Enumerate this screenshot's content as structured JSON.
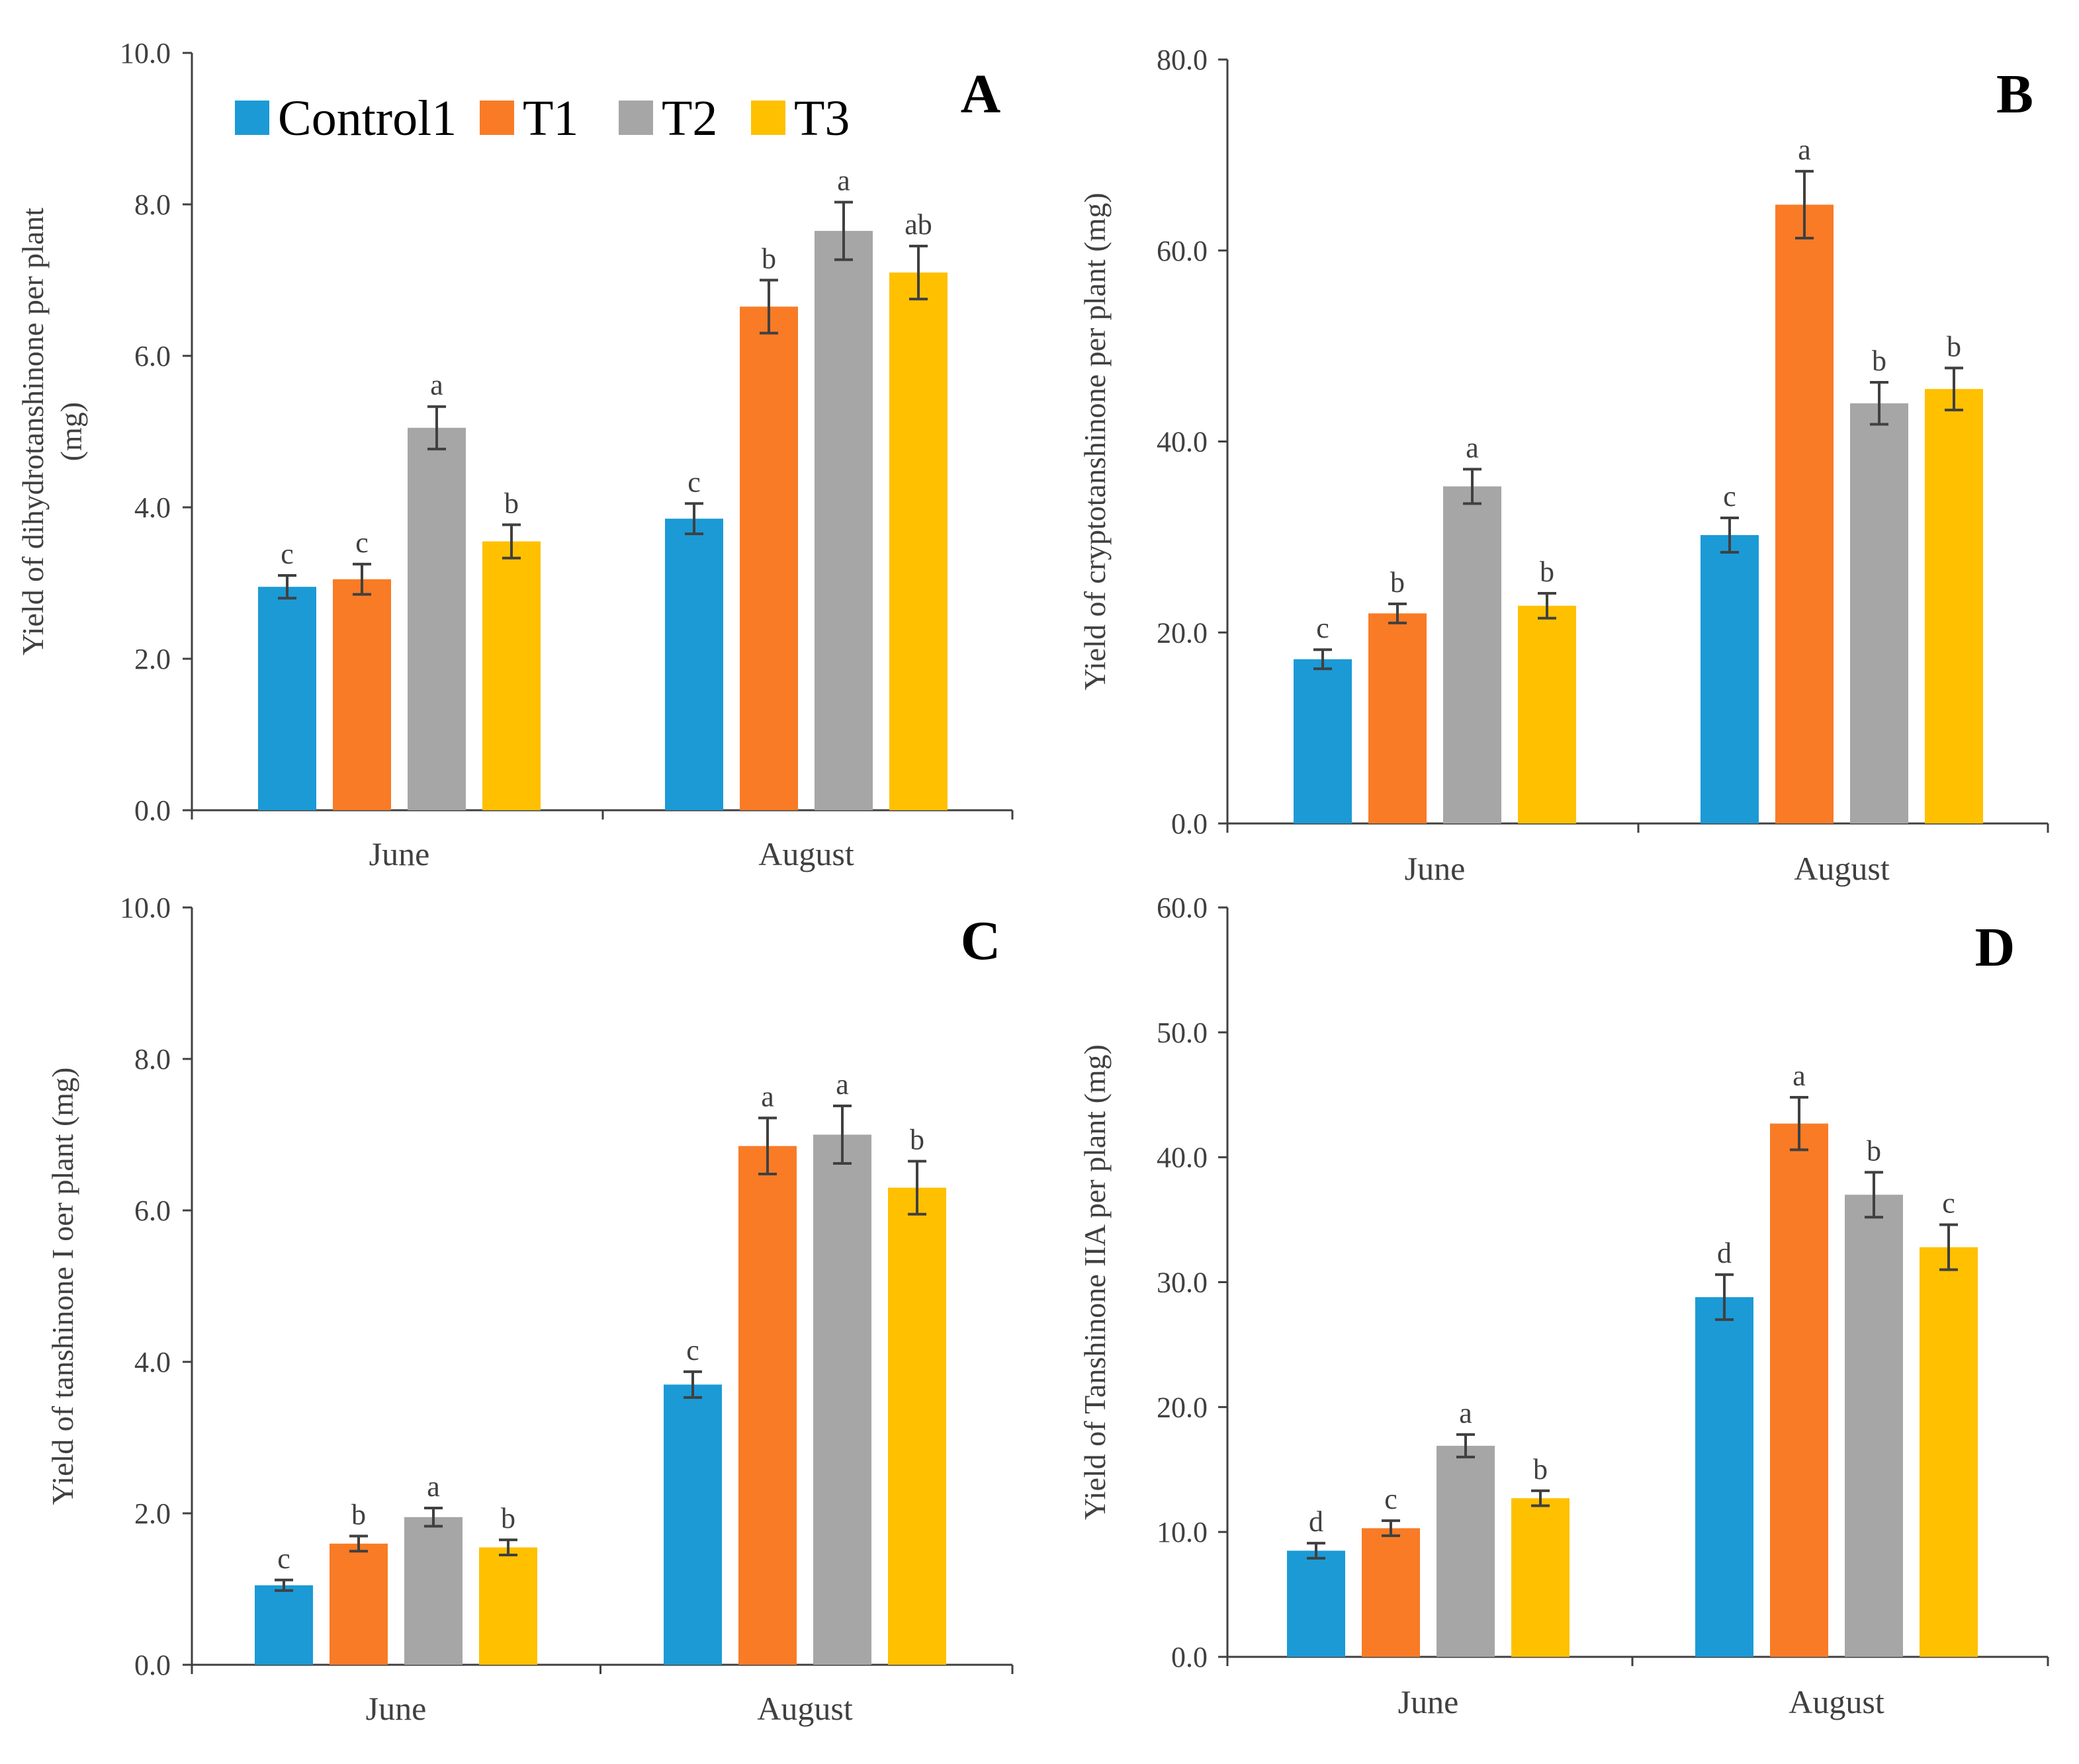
{
  "colors": {
    "Control": "#1b9ad6",
    "T1": "#f97b26",
    "T2": "#a6a6a6",
    "T3": "#ffc000",
    "axis": "#404040"
  },
  "legend": [
    "Control1",
    "T1",
    "T2",
    "T3"
  ],
  "chart_data": [
    {
      "type": "bar",
      "panel": "A",
      "ylabel_lines": [
        "Yield of dihydrotanshinone per plant",
        "(mg)"
      ],
      "categories": [
        "June",
        "August"
      ],
      "ylim": [
        0,
        10
      ],
      "yticks": [
        "0.0",
        "2.0",
        "4.0",
        "6.0",
        "8.0",
        "10.0"
      ],
      "series": [
        {
          "name": "Control1",
          "values": [
            2.95,
            3.85
          ],
          "errors": [
            0.15,
            0.2
          ],
          "letters": [
            "c",
            "c"
          ]
        },
        {
          "name": "T1",
          "values": [
            3.05,
            6.65
          ],
          "errors": [
            0.2,
            0.35
          ],
          "letters": [
            "c",
            "b"
          ]
        },
        {
          "name": "T2",
          "values": [
            5.05,
            7.65
          ],
          "errors": [
            0.28,
            0.38
          ],
          "letters": [
            "a",
            "a"
          ]
        },
        {
          "name": "T3",
          "values": [
            3.55,
            7.1
          ],
          "errors": [
            0.22,
            0.35
          ],
          "letters": [
            "b",
            "ab"
          ]
        }
      ]
    },
    {
      "type": "bar",
      "panel": "B",
      "ylabel_lines": [
        "Yield of cryptotanshinone per plant (mg)"
      ],
      "categories": [
        "June",
        "August"
      ],
      "ylim": [
        0,
        80
      ],
      "yticks": [
        "0.0",
        "20.0",
        "40.0",
        "60.0",
        "80.0"
      ],
      "series": [
        {
          "name": "Control1",
          "values": [
            17.2,
            30.2
          ],
          "errors": [
            1.0,
            1.8
          ],
          "letters": [
            "c",
            "c"
          ]
        },
        {
          "name": "T1",
          "values": [
            22.0,
            64.8
          ],
          "errors": [
            1.0,
            3.5
          ],
          "letters": [
            "b",
            "a"
          ]
        },
        {
          "name": "T2",
          "values": [
            35.3,
            44.0
          ],
          "errors": [
            1.8,
            2.2
          ],
          "letters": [
            "a",
            "b"
          ]
        },
        {
          "name": "T3",
          "values": [
            22.8,
            45.5
          ],
          "errors": [
            1.3,
            2.2
          ],
          "letters": [
            "b",
            "b"
          ]
        }
      ]
    },
    {
      "type": "bar",
      "panel": "C",
      "ylabel_lines": [
        "Yield of tanshinone I oer plant (mg)"
      ],
      "categories": [
        "June",
        "August"
      ],
      "ylim": [
        0,
        10
      ],
      "yticks": [
        "0.0",
        "2.0",
        "4.0",
        "6.0",
        "8.0",
        "10.0"
      ],
      "series": [
        {
          "name": "Control1",
          "values": [
            1.05,
            3.7
          ],
          "errors": [
            0.07,
            0.17
          ],
          "letters": [
            "c",
            "c"
          ]
        },
        {
          "name": "T1",
          "values": [
            1.6,
            6.85
          ],
          "errors": [
            0.1,
            0.37
          ],
          "letters": [
            "b",
            "a"
          ]
        },
        {
          "name": "T2",
          "values": [
            1.95,
            7.0
          ],
          "errors": [
            0.12,
            0.38
          ],
          "letters": [
            "a",
            "a"
          ]
        },
        {
          "name": "T3",
          "values": [
            1.55,
            6.3
          ],
          "errors": [
            0.1,
            0.35
          ],
          "letters": [
            "b",
            "b"
          ]
        }
      ]
    },
    {
      "type": "bar",
      "panel": "D",
      "ylabel_lines": [
        "Yield of Tanshinone IIA per plant (mg)"
      ],
      "categories": [
        "June",
        "August"
      ],
      "ylim": [
        0,
        60
      ],
      "yticks": [
        "0.0",
        "10.0",
        "20.0",
        "30.0",
        "40.0",
        "50.0",
        "60.0"
      ],
      "series": [
        {
          "name": "Control1",
          "values": [
            8.5,
            28.8
          ],
          "errors": [
            0.6,
            1.8
          ],
          "letters": [
            "d",
            "d"
          ]
        },
        {
          "name": "T1",
          "values": [
            10.3,
            42.7
          ],
          "errors": [
            0.6,
            2.1
          ],
          "letters": [
            "c",
            "a"
          ]
        },
        {
          "name": "T2",
          "values": [
            16.9,
            37.0
          ],
          "errors": [
            0.9,
            1.8
          ],
          "letters": [
            "a",
            "b"
          ]
        },
        {
          "name": "T3",
          "values": [
            12.7,
            32.8
          ],
          "errors": [
            0.6,
            1.8
          ],
          "letters": [
            "b",
            "c"
          ]
        }
      ]
    }
  ]
}
